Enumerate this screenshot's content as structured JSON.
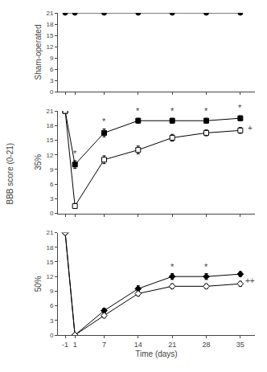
{
  "chart_data": [
    {
      "type": "line",
      "ylabel": "Sham-operated",
      "xlim": [
        -2.5,
        38
      ],
      "xticks": [
        -1,
        1,
        7,
        14,
        21,
        28,
        35
      ],
      "ylim": [
        0,
        21
      ],
      "yticks": [
        0,
        3,
        6,
        9,
        12,
        15,
        18,
        21
      ],
      "grid": false,
      "tick_labels": "y",
      "series": [
        {
          "x": [
            -1,
            1,
            7,
            14,
            21,
            28,
            35
          ],
          "values": [
            21,
            21,
            21,
            21,
            21,
            21,
            21
          ],
          "yerr": [
            0,
            0,
            0,
            0,
            0,
            0,
            0
          ],
          "marker": "circle",
          "color": "black"
        }
      ]
    },
    {
      "type": "line",
      "ylabel": "35%",
      "xlim": [
        -2.5,
        38
      ],
      "xticks": [
        -1,
        1,
        7,
        14,
        21,
        28,
        35
      ],
      "ylim": [
        0,
        21
      ],
      "yticks": [
        0,
        3,
        6,
        9,
        12,
        15,
        18,
        21
      ],
      "grid": false,
      "tick_labels": "y",
      "series": [
        {
          "x": [
            -1,
            1,
            7,
            14,
            21,
            28,
            35
          ],
          "values": [
            21,
            10,
            16.5,
            19,
            19,
            19,
            19.5
          ],
          "yerr": [
            0,
            0.8,
            0.8,
            0.5,
            0.5,
            0.5,
            0.5
          ],
          "marker": "square",
          "color": "black"
        },
        {
          "x": [
            -1,
            1,
            7,
            14,
            21,
            28,
            35
          ],
          "values": [
            21,
            1.5,
            11,
            13,
            15.5,
            16.5,
            17
          ],
          "yerr": [
            0,
            0.5,
            0.8,
            0.8,
            0.7,
            0.6,
            0.6
          ],
          "marker": "square-open",
          "color": "black"
        }
      ],
      "annotations": [
        {
          "x": 1,
          "y": 11.5,
          "text": "*"
        },
        {
          "x": 7,
          "y": 18.0,
          "text": "*"
        },
        {
          "x": 14,
          "y": 20.2,
          "text": "*"
        },
        {
          "x": 21,
          "y": 20.2,
          "text": "*"
        },
        {
          "x": 28,
          "y": 20.2,
          "text": "*"
        },
        {
          "x": 35,
          "y": 20.8,
          "text": "*"
        },
        {
          "x": 35,
          "y": 17.5,
          "text": "+"
        },
        {
          "text": "BBB score (0-21)"
        }
      ]
    },
    {
      "type": "line",
      "ylabel": "50%",
      "xlabel": "Time (days)",
      "xlim": [
        -2.5,
        38
      ],
      "xticks": [
        -1,
        1,
        7,
        14,
        21,
        28,
        35
      ],
      "ylim": [
        0,
        21
      ],
      "yticks": [
        0,
        3,
        6,
        9,
        12,
        15,
        18,
        21
      ],
      "grid": false,
      "series": [
        {
          "x": [
            -1,
            1,
            7,
            14,
            21,
            28,
            35
          ],
          "values": [
            21,
            0,
            5,
            9.5,
            12,
            12,
            12.5
          ],
          "yerr": [
            0,
            0,
            0.5,
            0.6,
            0.6,
            0.6,
            0.5
          ],
          "marker": "diamond",
          "color": "black"
        },
        {
          "x": [
            -1,
            1,
            7,
            14,
            21,
            28,
            35
          ],
          "values": [
            21,
            0,
            4,
            8.5,
            10,
            10,
            10.5
          ],
          "yerr": [
            0,
            0,
            0.5,
            0.5,
            0.5,
            0.5,
            0.5
          ],
          "marker": "diamond-open",
          "color": "black"
        }
      ],
      "annotations": [
        {
          "x": 21,
          "y": 13.2,
          "text": "*"
        },
        {
          "x": 28,
          "y": 13.2,
          "text": "*"
        },
        {
          "x": 35,
          "y": 11.2,
          "text": "++"
        }
      ]
    }
  ]
}
